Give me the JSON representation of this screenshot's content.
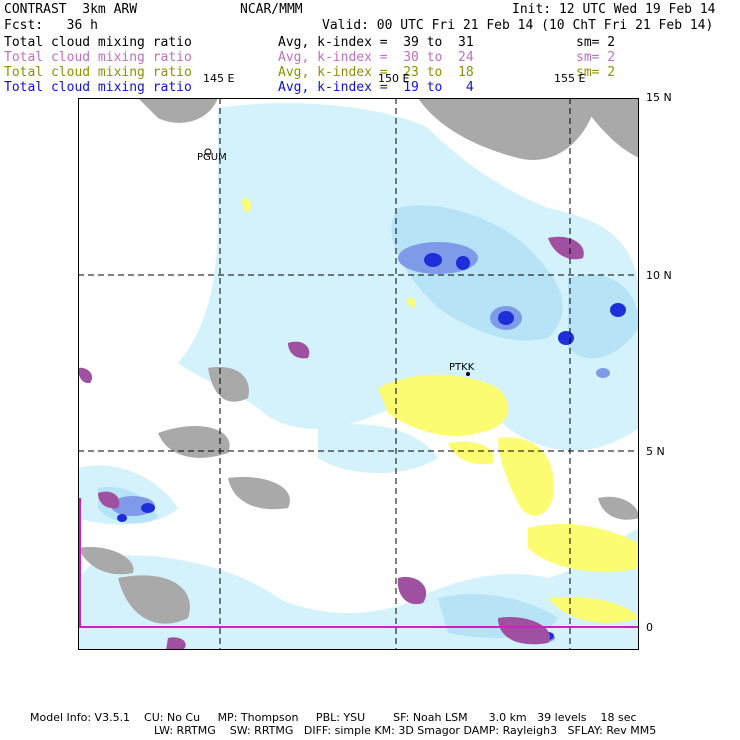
{
  "header": {
    "model": "CONTRAST  3km ARW",
    "org": "NCAR/MMM",
    "init": "Init: 12 UTC Wed 19 Feb 14",
    "fcst": "Fcst:   36 h",
    "valid": "Valid: 00 UTC Fri 21 Feb 14 (10 ChT Fri 21 Feb 14)"
  },
  "fields": [
    {
      "name": "Total cloud mixing ratio",
      "range": "Avg, k-index =  39 to  31",
      "sm": "sm= 2",
      "color": "#000000"
    },
    {
      "name": "Total cloud mixing ratio",
      "range": "Avg, k-index =  30 to  24",
      "sm": "sm= 2",
      "color": "#c070c0"
    },
    {
      "name": "Total cloud mixing ratio",
      "range": "Avg, k-index =  23 to  18",
      "sm": "sm= 2",
      "color": "#909000"
    },
    {
      "name": "Total cloud mixing ratio",
      "range": "Avg, k-index =  19 to   4",
      "sm": "",
      "color": "#1010e0"
    }
  ],
  "lon_labels": [
    "145 E",
    "150 E",
    "155 E"
  ],
  "lat_labels": [
    "15 N",
    "10 N",
    "5 N",
    "0"
  ],
  "stations": [
    "PGUM",
    "PTKK"
  ],
  "footer": {
    "line1": "Model Info: V3.5.1    CU: No Cu     MP: Thompson     PBL: YSU        SF: Noah LSM      3.0 km   39 levels    18 sec",
    "line2": "LW: RRTMG    SW: RRTMG   DIFF: simple KM: 3D Smagor DAMP: Rayleigh3   SFLAY: Rev MM5"
  },
  "colors": {
    "cloud_light": "#d4f2fb",
    "cloud_mid": "#b6e4f6",
    "cloud_blue": "#7f9ae8",
    "cloud_core": "#1d2fd8",
    "gray_cloud": "#a9a9a9",
    "purple_cloud": "#a050a0",
    "yellow_cloud": "#fcfc72",
    "grid": "#000000",
    "equator_line": "#d020c0"
  }
}
